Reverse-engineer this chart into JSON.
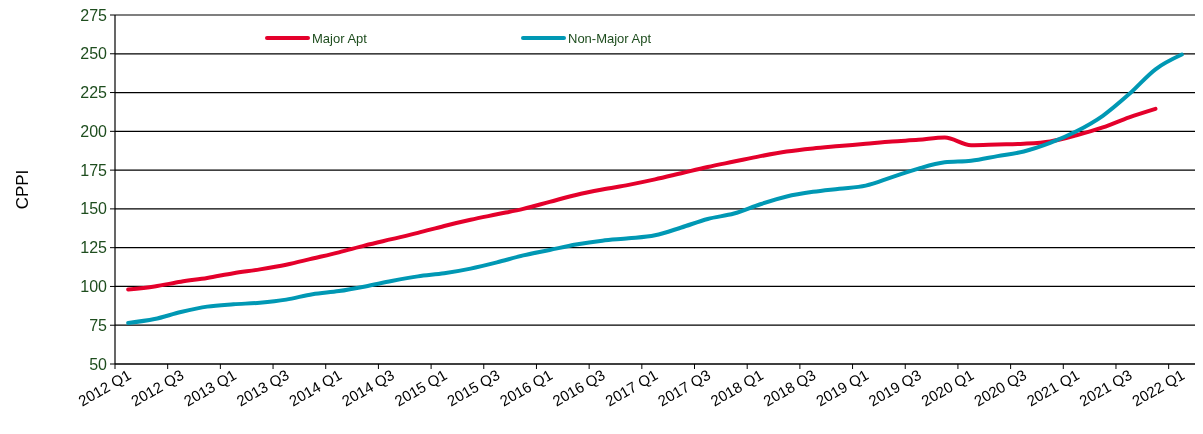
{
  "chart_data": {
    "type": "line",
    "ylabel": "CPPI",
    "categories": [
      "2012 Q1",
      null,
      "2012 Q3",
      null,
      "2013 Q1",
      null,
      "2013 Q3",
      null,
      "2014 Q1",
      null,
      "2014 Q3",
      null,
      "2015 Q1",
      null,
      "2015 Q3",
      null,
      "2016 Q1",
      null,
      "2016 Q3",
      null,
      "2017 Q1",
      null,
      "2017 Q3",
      null,
      "2018 Q1",
      null,
      "2018 Q3",
      null,
      "2019 Q1",
      null,
      "2019 Q3",
      null,
      "2020 Q1",
      null,
      "2020 Q3",
      null,
      "2021 Q1",
      null,
      "2021 Q3",
      null,
      "2022 Q1"
    ],
    "series": [
      {
        "name": "Major Apt",
        "color": "#e4002b",
        "values": [
          98,
          100,
          103,
          105.5,
          108.5,
          111,
          114,
          118,
          122,
          126.5,
          130.5,
          134.5,
          139,
          143,
          146.5,
          150,
          154.5,
          159,
          162.5,
          165.5,
          169,
          173,
          177,
          180.5,
          184,
          187,
          189,
          190.5,
          192,
          193.5,
          194.5,
          196,
          191,
          191.5,
          192,
          193.5,
          197.5,
          202.5,
          209,
          214.5,
          null
        ]
      },
      {
        "name": "Non-Major Apt",
        "color": "#0098b4",
        "values": [
          76.5,
          79,
          83.5,
          87,
          88.5,
          89.5,
          91.5,
          95,
          97,
          100,
          103.5,
          106.5,
          108.5,
          111.5,
          115.5,
          120,
          123.5,
          127,
          129.5,
          131,
          133,
          138,
          143.5,
          147,
          153,
          158,
          161,
          163,
          165,
          170.5,
          176,
          180,
          181,
          184,
          187,
          192.5,
          200,
          210,
          224,
          240,
          249.5
        ]
      }
    ],
    "ylim": [
      50,
      275
    ],
    "yticks": [
      50,
      75,
      100,
      125,
      150,
      175,
      200,
      225,
      250,
      275
    ],
    "grid": "y",
    "legend": "top",
    "marker": "none",
    "line_style": "solid"
  }
}
